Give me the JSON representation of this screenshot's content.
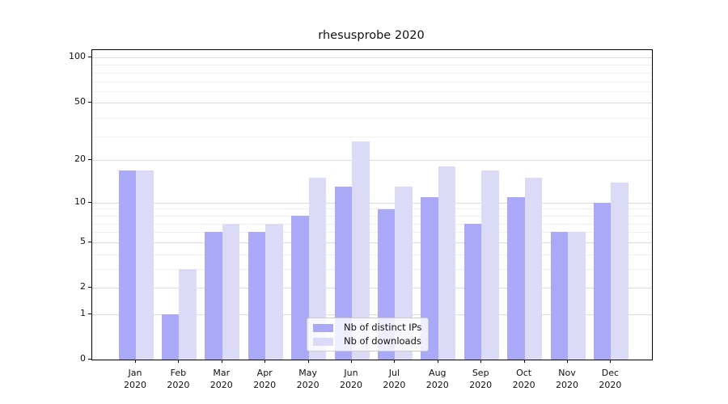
{
  "title": "rhesusprobe 2020",
  "chart_data": {
    "type": "bar",
    "title": "rhesusprobe 2020",
    "categories": [
      "Jan",
      "Feb",
      "Mar",
      "Apr",
      "May",
      "Jun",
      "Jul",
      "Aug",
      "Sep",
      "Oct",
      "Nov",
      "Dec"
    ],
    "x_tick_second_line": "2020",
    "series": [
      {
        "name": "Nb of distinct IPs",
        "color": "#a9a9f7",
        "values": [
          17,
          1,
          6,
          6,
          8,
          13,
          9,
          11,
          7,
          11,
          6,
          10
        ]
      },
      {
        "name": "Nb of downloads",
        "color": "#dbdbf8",
        "values": [
          17,
          3,
          7,
          7,
          15,
          27,
          13,
          18,
          17,
          15,
          6,
          14
        ]
      }
    ],
    "xlabel": "",
    "ylabel": "",
    "y_scale": "log10(value+1)",
    "y_ticks": [
      0,
      1,
      2,
      5,
      10,
      20,
      50,
      100
    ],
    "ylim": [
      0,
      112
    ],
    "minor_gridlines_value_plus1": [
      4,
      5,
      7,
      8,
      9,
      10,
      30,
      40,
      60,
      70,
      80,
      90
    ],
    "grid": true,
    "legend_position": "lower center"
  }
}
